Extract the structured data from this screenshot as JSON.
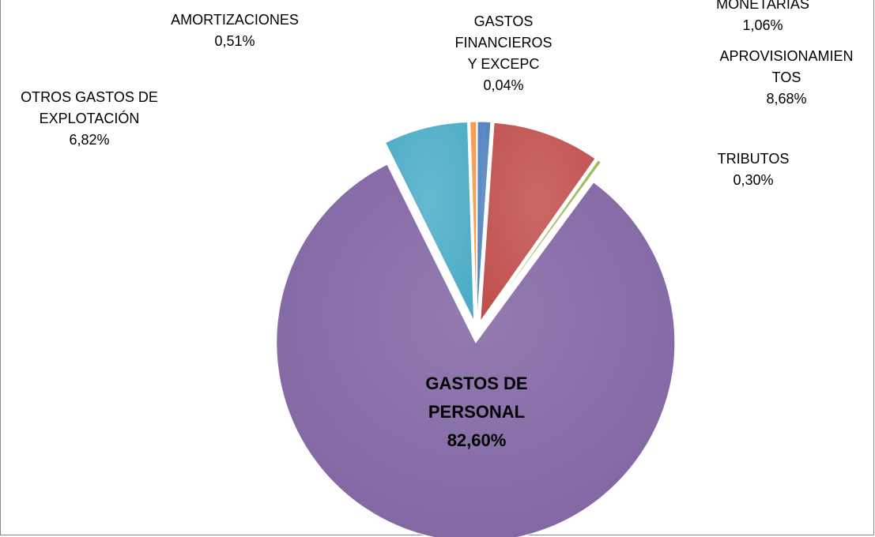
{
  "chart_data": {
    "type": "pie",
    "categories": [
      "GASTOS FINANCIEROS Y EXCEPC",
      "MONETARIAS",
      "APROVISIONAMIENTOS",
      "TRIBUTOS",
      "GASTOS DE PERSONAL",
      "OTROS GASTOS DE EXPLOTACIÓN",
      "AMORTIZACIONES"
    ],
    "values": [
      0.04,
      1.06,
      8.68,
      0.3,
      82.6,
      6.82,
      0.51
    ],
    "value_labels": [
      "0,04%",
      "1,06%",
      "8,68%",
      "0,30%",
      "82,60%",
      "6,82%",
      "0,51%"
    ],
    "colors": [
      "#2c4d75",
      "#4f81bd",
      "#c0504d",
      "#9bbb59",
      "#8064a2",
      "#4bacc6",
      "#f79646"
    ]
  }
}
